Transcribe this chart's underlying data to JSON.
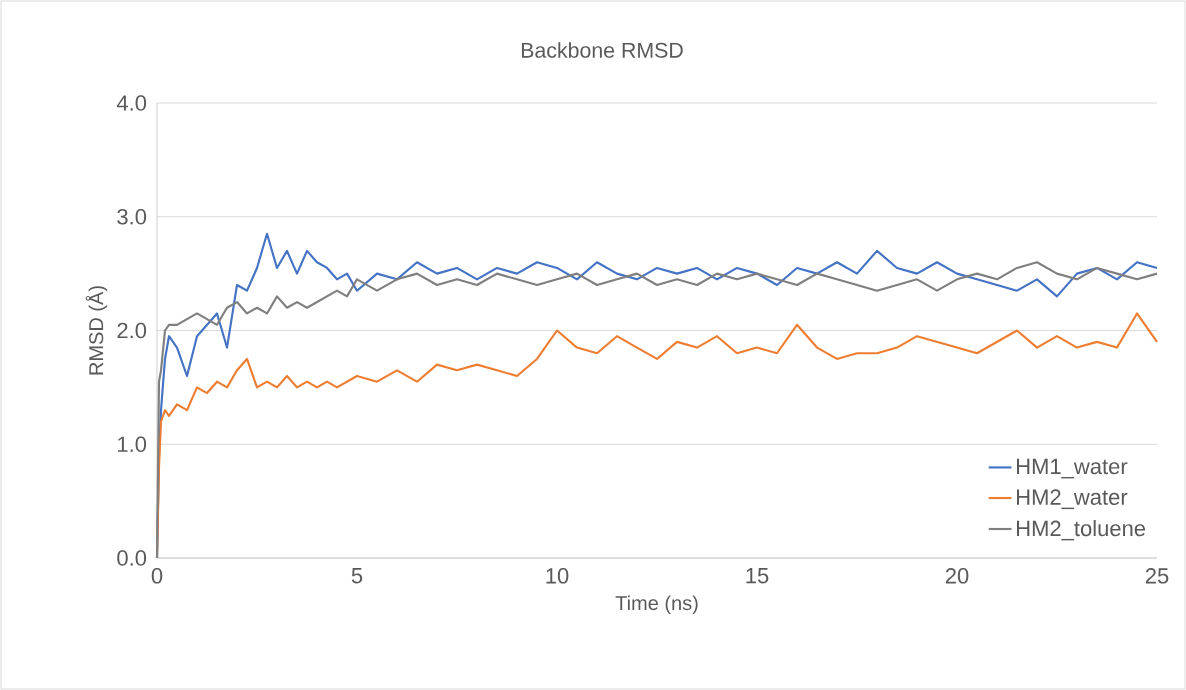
{
  "chart_data": {
    "type": "line",
    "title": "Backbone RMSD",
    "xlabel": "Time (ns)",
    "ylabel": "RMSD (Å)",
    "xlim": [
      0,
      25
    ],
    "xticks": [
      0,
      5,
      10,
      15,
      20,
      25
    ],
    "ylim": [
      0,
      4
    ],
    "yticks": [
      {
        "value": 0,
        "label": "0.0"
      },
      {
        "value": 1,
        "label": "1.0"
      },
      {
        "value": 2,
        "label": "2.0"
      },
      {
        "value": 3,
        "label": "3.0"
      },
      {
        "value": 4,
        "label": "4.0"
      }
    ],
    "grid": "y",
    "legend": "bottom right",
    "marker": "none",
    "line_style": "solid",
    "x": [
      0,
      0.05,
      0.1,
      0.2,
      0.3,
      0.5,
      0.75,
      1.0,
      1.25,
      1.5,
      1.75,
      2.0,
      2.25,
      2.5,
      2.75,
      3.0,
      3.25,
      3.5,
      3.75,
      4.0,
      4.25,
      4.5,
      4.75,
      5.0,
      5.5,
      6.0,
      6.5,
      7.0,
      7.5,
      8.0,
      8.5,
      9.0,
      9.5,
      10.0,
      10.5,
      11.0,
      11.5,
      12.0,
      12.5,
      13.0,
      13.5,
      14.0,
      14.5,
      15.0,
      15.5,
      16.0,
      16.5,
      17.0,
      17.5,
      18.0,
      18.5,
      19.0,
      19.5,
      20.0,
      20.5,
      21.0,
      21.5,
      22.0,
      22.5,
      23.0,
      23.5,
      24.0,
      24.5,
      25.0
    ],
    "series": [
      {
        "name": "HM1_water",
        "color": "#4472c4",
        "values": [
          0,
          0.9,
          1.3,
          1.75,
          1.95,
          1.85,
          1.6,
          1.95,
          2.05,
          2.15,
          1.85,
          2.4,
          2.35,
          2.55,
          2.85,
          2.55,
          2.7,
          2.5,
          2.7,
          2.6,
          2.55,
          2.45,
          2.5,
          2.35,
          2.5,
          2.45,
          2.6,
          2.5,
          2.55,
          2.45,
          2.55,
          2.5,
          2.6,
          2.55,
          2.45,
          2.6,
          2.5,
          2.45,
          2.55,
          2.5,
          2.55,
          2.45,
          2.55,
          2.5,
          2.4,
          2.55,
          2.5,
          2.6,
          2.5,
          2.7,
          2.55,
          2.5,
          2.6,
          2.5,
          2.45,
          2.4,
          2.35,
          2.45,
          2.3,
          2.5,
          2.55,
          2.45,
          2.6,
          2.55
        ]
      },
      {
        "name": "HM2_water",
        "color": "#ed7d31",
        "values": [
          0,
          0.8,
          1.2,
          1.3,
          1.25,
          1.35,
          1.3,
          1.5,
          1.45,
          1.55,
          1.5,
          1.65,
          1.75,
          1.5,
          1.55,
          1.5,
          1.6,
          1.5,
          1.55,
          1.5,
          1.55,
          1.5,
          1.55,
          1.6,
          1.55,
          1.65,
          1.55,
          1.7,
          1.65,
          1.7,
          1.65,
          1.6,
          1.75,
          2.0,
          1.85,
          1.8,
          1.95,
          1.85,
          1.75,
          1.9,
          1.85,
          1.95,
          1.8,
          1.85,
          1.8,
          2.05,
          1.85,
          1.75,
          1.8,
          1.8,
          1.85,
          1.95,
          1.9,
          1.85,
          1.8,
          1.9,
          2.0,
          1.85,
          1.95,
          1.85,
          1.9,
          1.85,
          2.15,
          1.9
        ]
      },
      {
        "name": "HM2_toluene",
        "color": "#7f7f7f",
        "values": [
          0,
          1.55,
          1.65,
          2.0,
          2.05,
          2.05,
          2.1,
          2.15,
          2.1,
          2.05,
          2.2,
          2.25,
          2.15,
          2.2,
          2.15,
          2.3,
          2.2,
          2.25,
          2.2,
          2.25,
          2.3,
          2.35,
          2.3,
          2.45,
          2.35,
          2.45,
          2.5,
          2.4,
          2.45,
          2.4,
          2.5,
          2.45,
          2.4,
          2.45,
          2.5,
          2.4,
          2.45,
          2.5,
          2.4,
          2.45,
          2.4,
          2.5,
          2.45,
          2.5,
          2.45,
          2.4,
          2.5,
          2.45,
          2.4,
          2.35,
          2.4,
          2.45,
          2.35,
          2.45,
          2.5,
          2.45,
          2.55,
          2.6,
          2.5,
          2.45,
          2.55,
          2.5,
          2.45,
          2.5
        ]
      }
    ]
  }
}
